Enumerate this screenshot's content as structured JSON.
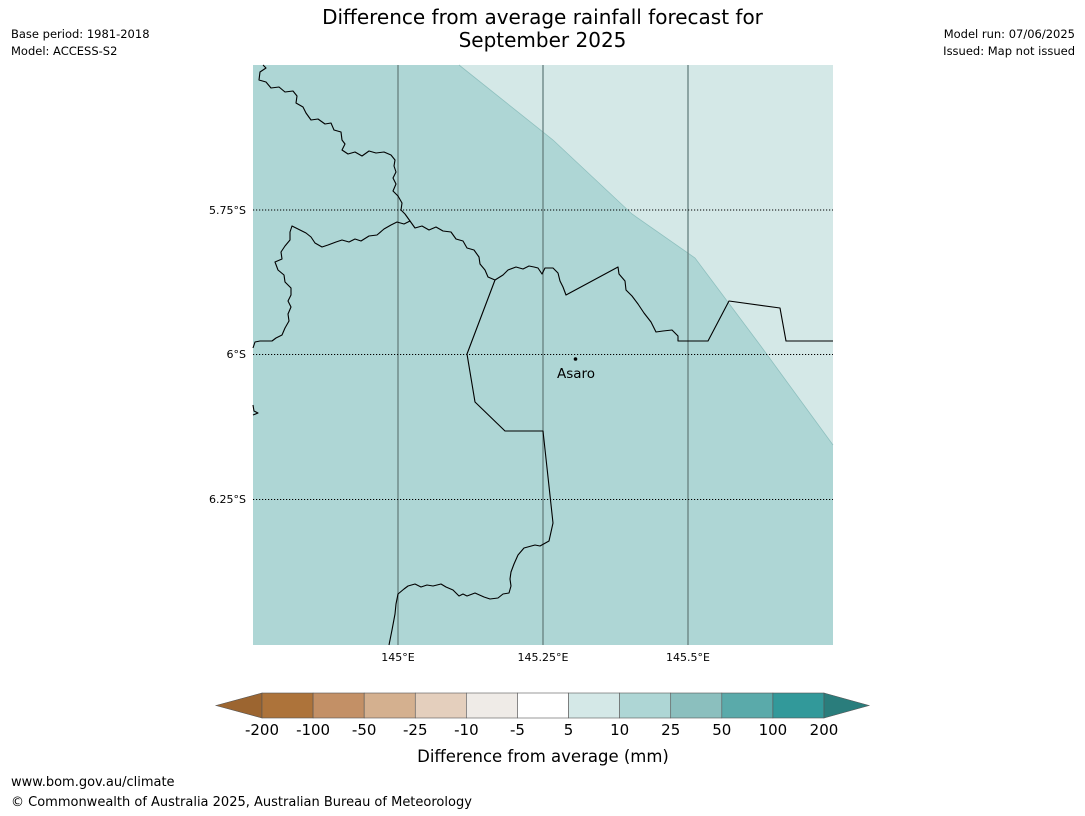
{
  "title": {
    "line1": "Difference from average rainfall forecast for",
    "line2": "September 2025"
  },
  "meta_left": {
    "base_period": "Base period: 1981-2018",
    "model": "Model: ACCESS-S2"
  },
  "meta_right": {
    "model_run": "Model run: 07/06/2025",
    "issued": "Issued: Map not issued"
  },
  "map": {
    "lat_labels": [
      "5.75°S",
      "6°S",
      "6.25°S"
    ],
    "lon_labels": [
      "145°E",
      "145.25°E",
      "145.5°E"
    ],
    "place_label": "Asaro",
    "fill_colors": {
      "light": "#d4e8e7",
      "mid": "#aed6d5"
    }
  },
  "legend": {
    "title": "Difference from average (mm)",
    "tick_labels": [
      "-200",
      "-100",
      "-50",
      "-25",
      "-10",
      "-5",
      "5",
      "10",
      "25",
      "50",
      "100",
      "200"
    ],
    "colors": {
      "below_extend": "#9c6530",
      "bins": [
        "#ad733a",
        "#c39066",
        "#d4b08f",
        "#e4cfbd",
        "#efebe7",
        "#ffffff",
        "#d4e8e7",
        "#aed6d5",
        "#8bbfbe",
        "#5aaaaa",
        "#32999a"
      ],
      "above_extend": "#2a7d7c"
    }
  },
  "footer": {
    "url": "www.bom.gov.au/climate",
    "copyright": "© Commonwealth of Australia 2025, Australian Bureau of Meteorology"
  }
}
